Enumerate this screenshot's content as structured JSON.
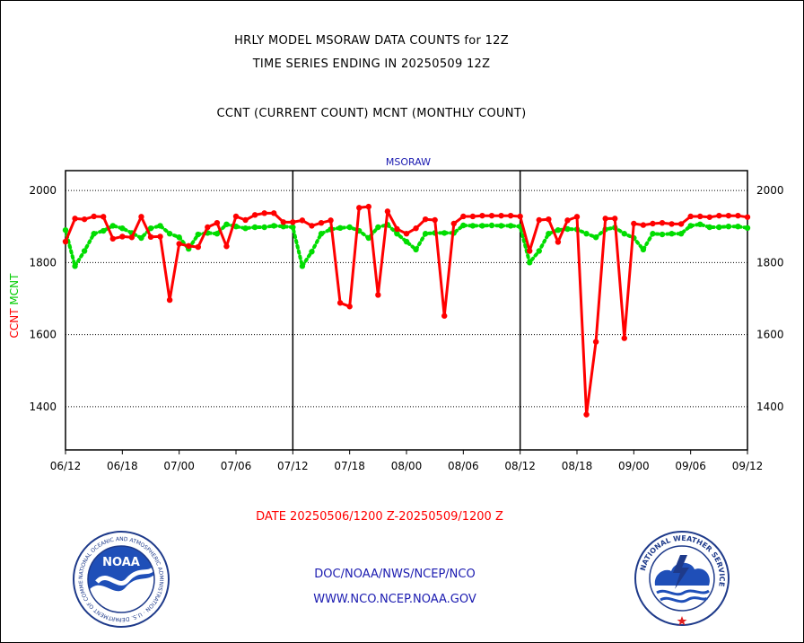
{
  "titles": {
    "line1": "HRLY MODEL MSORAW DATA COUNTS for 12Z",
    "line2": "TIME SERIES ENDING IN 20250509 12Z",
    "line3": "CCNT (CURRENT COUNT) MCNT (MONTHLY COUNT)"
  },
  "chart_data": {
    "type": "line",
    "title": "MSORAW",
    "ylabel_parts": [
      {
        "text": "CCNT",
        "color": "#ff0000"
      },
      {
        "text": "MCNT",
        "color": "#00cc00"
      }
    ],
    "xlabel": "DATE 20250506/1200 Z-20250509/1200 Z",
    "ylim": [
      1280,
      2055
    ],
    "yticks": [
      1400,
      1600,
      1800,
      2000
    ],
    "x_range_hours": [
      0,
      72
    ],
    "x_tick_labels": [
      "06/12",
      "06/18",
      "07/00",
      "07/06",
      "07/12",
      "07/18",
      "08/00",
      "08/06",
      "08/12",
      "08/18",
      "09/00",
      "09/06",
      "09/12"
    ],
    "day_separators": [
      "07/12",
      "08/12"
    ],
    "grid": "horizontal dotted",
    "series": [
      {
        "name": "CCNT",
        "color": "#ff0000",
        "style": "solid",
        "x_hours": [
          0,
          1,
          2,
          3,
          4,
          5,
          6,
          7,
          8,
          9,
          10,
          11,
          12,
          13,
          14,
          15,
          16,
          17,
          18,
          19,
          20,
          21,
          22,
          23,
          24,
          25,
          26,
          27,
          28,
          29,
          30,
          31,
          32,
          33,
          34,
          35,
          36,
          37,
          38,
          39,
          40,
          41,
          42,
          43,
          44,
          45,
          46,
          47,
          48,
          49,
          50,
          51,
          52,
          53,
          54,
          55,
          56,
          57,
          58,
          59,
          60,
          61,
          62,
          63,
          64,
          65,
          66,
          67,
          68,
          69,
          70,
          71,
          72
        ],
        "values": [
          1858,
          1922,
          1920,
          1928,
          1927,
          1866,
          1872,
          1870,
          1927,
          1871,
          1872,
          1696,
          1852,
          1846,
          1843,
          1898,
          1910,
          1845,
          1928,
          1918,
          1932,
          1937,
          1937,
          1912,
          1912,
          1917,
          1902,
          1910,
          1917,
          1688,
          1678,
          1952,
          1955,
          1710,
          1942,
          1893,
          1880,
          1895,
          1920,
          1918,
          1652,
          1908,
          1928,
          1928,
          1930,
          1930,
          1930,
          1930,
          1928,
          1832,
          1918,
          1920,
          1857,
          1917,
          1927,
          1378,
          1580,
          1922,
          1922,
          1590,
          1908,
          1904,
          1908,
          1910,
          1907,
          1907,
          1928,
          1928,
          1926,
          1930,
          1930,
          1930,
          1926
        ]
      },
      {
        "name": "MCNT",
        "color": "#00dd00",
        "style": "dotted",
        "x_hours": [
          0,
          1,
          2,
          3,
          4,
          5,
          6,
          7,
          8,
          9,
          10,
          11,
          12,
          13,
          14,
          15,
          16,
          17,
          18,
          19,
          20,
          21,
          22,
          23,
          24,
          25,
          26,
          27,
          28,
          29,
          30,
          31,
          32,
          33,
          34,
          35,
          36,
          37,
          38,
          39,
          40,
          41,
          42,
          43,
          44,
          45,
          46,
          47,
          48,
          49,
          50,
          51,
          52,
          53,
          54,
          55,
          56,
          57,
          58,
          59,
          60,
          61,
          62,
          63,
          64,
          65,
          66,
          67,
          68,
          69,
          70,
          71,
          72
        ],
        "values": [
          1890,
          1790,
          1832,
          1880,
          1888,
          1902,
          1895,
          1882,
          1868,
          1895,
          1902,
          1880,
          1870,
          1838,
          1878,
          1882,
          1880,
          1906,
          1900,
          1895,
          1898,
          1898,
          1902,
          1900,
          1898,
          1790,
          1830,
          1880,
          1892,
          1896,
          1898,
          1888,
          1868,
          1898,
          1905,
          1880,
          1858,
          1836,
          1880,
          1882,
          1882,
          1882,
          1903,
          1902,
          1902,
          1903,
          1902,
          1902,
          1900,
          1800,
          1832,
          1880,
          1890,
          1893,
          1892,
          1880,
          1870,
          1892,
          1897,
          1880,
          1868,
          1836,
          1880,
          1878,
          1880,
          1880,
          1902,
          1906,
          1898,
          1898,
          1900,
          1900,
          1896
        ]
      }
    ]
  },
  "footer": {
    "link1": "DOC/NOAA/NWS/NCEP/NCO",
    "link2": "WWW.NCO.NCEP.NOAA.GOV"
  },
  "logos": {
    "noaa_label": "NOAA",
    "noaa_ring_text": "NATIONAL OCEANIC AND ATMOSPHERIC ADMINISTRATION · U.S. DEPARTMENT OF COMMERCE",
    "nws_ring_text": "NATIONAL WEATHER SERVICE"
  },
  "colors": {
    "ccnt": "#ff0000",
    "mcnt": "#00dd00",
    "title_blue": "#1a1ab0",
    "axis": "#000000"
  }
}
